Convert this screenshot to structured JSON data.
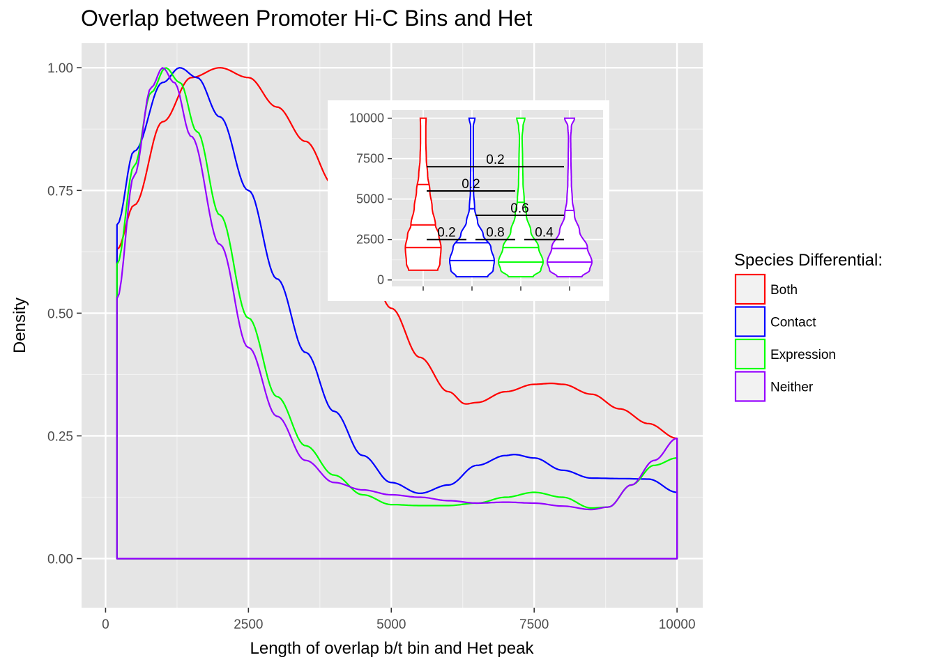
{
  "title": "Overlap between Promoter Hi-C Bins and Het",
  "chart_data": [
    {
      "type": "area",
      "title": "Overlap between Promoter Hi-C Bins and Het",
      "xlabel": "Length of overlap b/t bin and Het peak",
      "ylabel": "Density",
      "xlim": [
        -420,
        10450
      ],
      "ylim": [
        -0.1,
        1.05
      ],
      "xticks": [
        0,
        2500,
        5000,
        7500,
        10000
      ],
      "xtick_labels": [
        "0",
        "2500",
        "5000",
        "7500",
        "10000"
      ],
      "yticks": [
        0,
        0.25,
        0.5,
        0.75,
        1.0
      ],
      "ytick_labels": [
        "0.00",
        "0.25",
        "0.50",
        "0.75",
        "1.00"
      ],
      "grid": true,
      "legend": {
        "title": "Species Differential:",
        "position": "right",
        "entries": [
          "Both",
          "Contact",
          "Expression",
          "Neither"
        ]
      },
      "series": [
        {
          "name": "Both",
          "color": "#FF0000",
          "x": [
            200,
            500,
            1000,
            1500,
            2000,
            2500,
            3000,
            3500,
            4000,
            4500,
            5000,
            5500,
            6000,
            6300,
            6500,
            7000,
            7500,
            7800,
            8000,
            8500,
            9000,
            9500,
            10000
          ],
          "y": [
            0.63,
            0.72,
            0.89,
            0.98,
            1.0,
            0.98,
            0.92,
            0.85,
            0.76,
            0.64,
            0.51,
            0.41,
            0.34,
            0.315,
            0.318,
            0.34,
            0.355,
            0.357,
            0.355,
            0.335,
            0.305,
            0.275,
            0.245
          ]
        },
        {
          "name": "Contact",
          "color": "#0000FF",
          "x": [
            200,
            500,
            1000,
            1300,
            1600,
            2000,
            2500,
            3000,
            3500,
            4000,
            4500,
            5000,
            5500,
            6000,
            6500,
            7000,
            7150,
            7500,
            8000,
            8500,
            9000,
            9500,
            10000
          ],
          "y": [
            0.68,
            0.83,
            0.97,
            1.0,
            0.98,
            0.9,
            0.75,
            0.57,
            0.42,
            0.3,
            0.21,
            0.155,
            0.133,
            0.15,
            0.19,
            0.21,
            0.212,
            0.205,
            0.18,
            0.164,
            0.163,
            0.162,
            0.135
          ]
        },
        {
          "name": "Expression",
          "color": "#00FF00",
          "x": [
            200,
            500,
            800,
            1050,
            1300,
            1600,
            2000,
            2500,
            3000,
            3500,
            4000,
            4500,
            5000,
            5500,
            6000,
            6500,
            7000,
            7500,
            8000,
            8500,
            8800,
            9200,
            9600,
            10000
          ],
          "y": [
            0.6,
            0.8,
            0.95,
            1.0,
            0.97,
            0.87,
            0.7,
            0.49,
            0.33,
            0.23,
            0.17,
            0.13,
            0.11,
            0.108,
            0.108,
            0.113,
            0.125,
            0.135,
            0.125,
            0.103,
            0.105,
            0.15,
            0.19,
            0.205
          ]
        },
        {
          "name": "Neither",
          "color": "#9400FF",
          "x": [
            200,
            500,
            800,
            1000,
            1200,
            1500,
            2000,
            2500,
            3000,
            3500,
            4000,
            4500,
            5000,
            5500,
            6000,
            6500,
            7000,
            7500,
            8000,
            8500,
            8800,
            9200,
            9600,
            10000
          ],
          "y": [
            0.53,
            0.78,
            0.96,
            1.0,
            0.97,
            0.86,
            0.64,
            0.43,
            0.29,
            0.2,
            0.155,
            0.14,
            0.13,
            0.125,
            0.118,
            0.113,
            0.115,
            0.113,
            0.107,
            0.1,
            0.105,
            0.15,
            0.2,
            0.245
          ]
        }
      ]
    },
    {
      "type": "violin",
      "ylim": [
        -400,
        10500
      ],
      "yticks": [
        0,
        2500,
        5000,
        7500,
        10000
      ],
      "ytick_labels": [
        "0",
        "2500",
        "5000",
        "7500",
        "10000"
      ],
      "groups": [
        {
          "name": "Both",
          "color": "#FF0000",
          "quantiles": [
            2000,
            3400,
            5900
          ],
          "profile": [
            [
              600,
              0.65
            ],
            [
              1000,
              0.75
            ],
            [
              2000,
              0.8
            ],
            [
              2800,
              0.7
            ],
            [
              3400,
              0.55
            ],
            [
              4500,
              0.4
            ],
            [
              5500,
              0.3
            ],
            [
              6500,
              0.2
            ],
            [
              7500,
              0.14
            ],
            [
              8500,
              0.12
            ],
            [
              9500,
              0.12
            ],
            [
              10000,
              0.13
            ]
          ]
        },
        {
          "name": "Contact",
          "color": "#0000FF",
          "quantiles": [
            1200,
            2300,
            4400
          ],
          "profile": [
            [
              200,
              0.7
            ],
            [
              600,
              0.95
            ],
            [
              1200,
              1.0
            ],
            [
              2000,
              0.85
            ],
            [
              2800,
              0.5
            ],
            [
              3600,
              0.25
            ],
            [
              4400,
              0.12
            ],
            [
              5500,
              0.07
            ],
            [
              7000,
              0.06
            ],
            [
              8500,
              0.06
            ],
            [
              9500,
              0.06
            ],
            [
              10000,
              0.13
            ]
          ]
        },
        {
          "name": "Expression",
          "color": "#00FF00",
          "quantiles": [
            1100,
            2000,
            4800
          ],
          "profile": [
            [
              200,
              0.55
            ],
            [
              600,
              0.9
            ],
            [
              1100,
              1.0
            ],
            [
              2000,
              0.8
            ],
            [
              3000,
              0.45
            ],
            [
              4000,
              0.25
            ],
            [
              5000,
              0.15
            ],
            [
              6000,
              0.1
            ],
            [
              7500,
              0.08
            ],
            [
              8800,
              0.06
            ],
            [
              9500,
              0.1
            ],
            [
              10000,
              0.18
            ]
          ]
        },
        {
          "name": "Neither",
          "color": "#9400FF",
          "quantiles": [
            1100,
            1950,
            4300
          ],
          "profile": [
            [
              200,
              0.55
            ],
            [
              600,
              0.9
            ],
            [
              1100,
              1.0
            ],
            [
              2000,
              0.8
            ],
            [
              3000,
              0.45
            ],
            [
              4000,
              0.22
            ],
            [
              5000,
              0.12
            ],
            [
              6000,
              0.08
            ],
            [
              7500,
              0.06
            ],
            [
              8800,
              0.05
            ],
            [
              9500,
              0.08
            ],
            [
              10000,
              0.22
            ]
          ]
        }
      ],
      "comparisons": [
        {
          "from": "Both",
          "to": "Neither",
          "y": 7000,
          "label": "0.2"
        },
        {
          "from": "Both",
          "to": "Expression",
          "y": 5500,
          "label": "0.2"
        },
        {
          "from": "Contact",
          "to": "Neither",
          "y": 4000,
          "label": "0.6"
        },
        {
          "from": "Both",
          "to": "Contact",
          "y": 2500,
          "label": "0.2"
        },
        {
          "from": "Contact",
          "to": "Expression",
          "y": 2500,
          "label": "0.8"
        },
        {
          "from": "Expression",
          "to": "Neither",
          "y": 2500,
          "label": "0.4"
        }
      ]
    }
  ]
}
